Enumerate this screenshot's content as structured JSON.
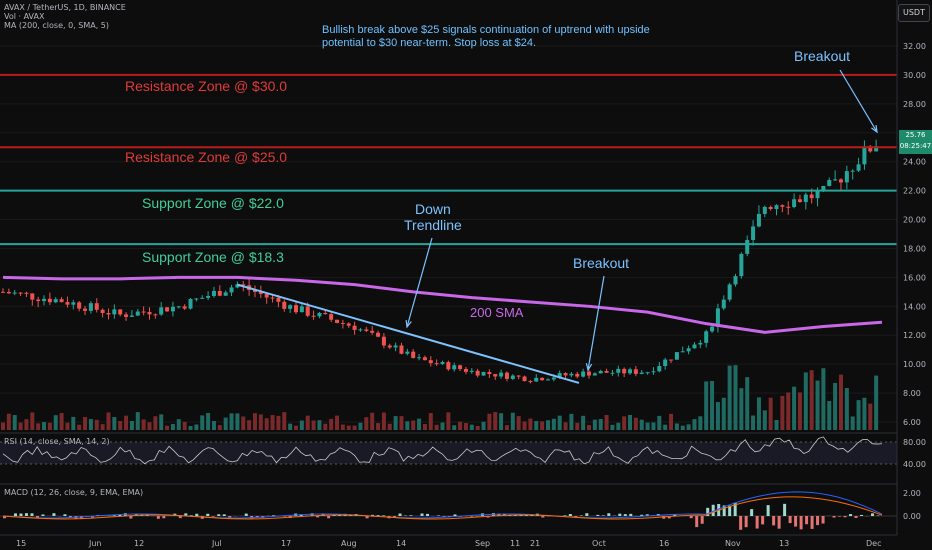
{
  "header": {
    "symbol_line": "AVAX / TetherUS, 1D, BINANCE",
    "vol_line": "Vol · AVAX",
    "ma_line": "MA (200, close, 0, SMA, 5)",
    "currency": "USDT"
  },
  "annotations": {
    "note": "Bullish break above $25 signals continuation of uptrend with upside potential to $30 near-term. Stop loss at $24.",
    "resistance_30": "Resistance Zone @ $30.0",
    "resistance_25": "Resistance Zone @ $25.0",
    "support_22": "Support Zone @ $22.0",
    "support_18": "Support Zone @ $18.3",
    "down_trendline": "Down\nTrendline",
    "breakout_mid": "Breakout",
    "breakout_top": "Breakout",
    "sma_label": "200 SMA"
  },
  "price_box": {
    "price": "25.76",
    "countdown": "08:25:47"
  },
  "price_axis": [
    "32.00",
    "30.00",
    "28.00",
    "26.00",
    "24.00",
    "22.00",
    "20.00",
    "18.00",
    "16.00",
    "14.00",
    "12.00",
    "10.00",
    "8.00",
    "6.00"
  ],
  "rsi": {
    "legend": "RSI (14, close, SMA, 14, 2)",
    "axis": [
      "80.00",
      "40.00"
    ]
  },
  "macd": {
    "legend": "MACD (12, 26, close, 9, EMA, EMA)",
    "axis": [
      "2.00",
      "0.00"
    ]
  },
  "time_axis": [
    "15",
    "Jun",
    "12",
    "Jul",
    "17",
    "Aug",
    "14",
    "Sep",
    "11",
    "21",
    "Oct",
    "16",
    "Nov",
    "13",
    "Dec"
  ],
  "colors": {
    "up": "#26a69a",
    "down": "#ef5350",
    "sma": "#c868e8",
    "trendline": "#7cc2ff",
    "resistance": "#b71c1c",
    "support": "#26a69a",
    "background": "#0d0d0d"
  },
  "chart_data": {
    "type": "line",
    "title": "AVAX / TetherUS, 1D, BINANCE",
    "ylim": [
      5.5,
      33.0
    ],
    "x": [
      "May 15",
      "Jun 1",
      "Jun 12",
      "Jul 1",
      "Jul 17",
      "Aug 1",
      "Aug 14",
      "Sep 1",
      "Sep 11",
      "Sep 21",
      "Oct 1",
      "Oct 16",
      "Nov 1",
      "Nov 13",
      "Dec 1",
      "Dec 6"
    ],
    "series": [
      {
        "name": "Close",
        "values": [
          15.0,
          14.4,
          13.4,
          14.0,
          15.5,
          13.8,
          12.6,
          10.4,
          9.5,
          9.0,
          9.4,
          9.5,
          12.0,
          21.0,
          21.8,
          25.76
        ]
      },
      {
        "name": "MA (200, close, 0, SMA, 5)",
        "values": [
          16.0,
          15.9,
          15.9,
          16.0,
          16.0,
          15.8,
          15.5,
          15.0,
          14.6,
          14.3,
          14.0,
          13.6,
          12.8,
          12.2,
          12.6,
          12.9
        ]
      }
    ],
    "levels": {
      "resistance": [
        30.0,
        25.0
      ],
      "support": [
        22.0,
        18.3
      ]
    },
    "trendline": {
      "from": {
        "x": "Jul 17",
        "y": 15.5
      },
      "to": {
        "x": "Sep 28",
        "y": 8.7
      }
    }
  }
}
